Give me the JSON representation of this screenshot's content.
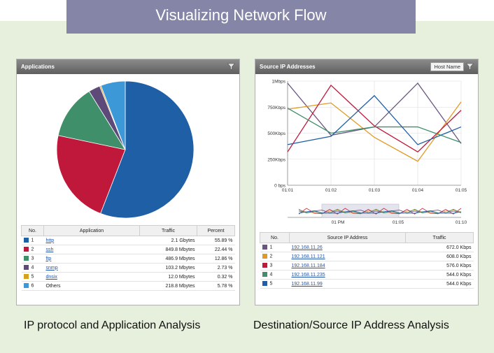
{
  "banner": {
    "title": "Visualizing Network Flow"
  },
  "applications": {
    "header": "Applications",
    "table": {
      "columns": [
        "No.",
        "Application",
        "Traffic",
        "Percent"
      ],
      "rows": [
        {
          "no": "1",
          "app": "http",
          "traffic": "2.1 Gbytes",
          "percent": "55.89 %",
          "color": "#1f5fa6",
          "link": true
        },
        {
          "no": "2",
          "app": "ssh",
          "traffic": "849.8 Mbytes",
          "percent": "22.44 %",
          "color": "#c0183b",
          "link": true
        },
        {
          "no": "3",
          "app": "ftp",
          "traffic": "486.9 Mbytes",
          "percent": "12.86 %",
          "color": "#3f8f6a",
          "link": true
        },
        {
          "no": "4",
          "app": "snmp",
          "traffic": "103.2 Mbytes",
          "percent": "2.73 %",
          "color": "#5e4a78",
          "link": true
        },
        {
          "no": "5",
          "app": "dnsix",
          "traffic": "12.0 Mbytes",
          "percent": "0.32 %",
          "color": "#d4a21e",
          "link": true
        },
        {
          "no": "6",
          "app": "Others",
          "traffic": "218.8 Mbytes",
          "percent": "5.78 %",
          "color": "#3d98d8",
          "link": false
        }
      ]
    },
    "caption": "IP protocol and Application Analysis"
  },
  "source_ip": {
    "header": "Source IP Addresses",
    "host_button": "Host Name",
    "table": {
      "columns": [
        "No.",
        "Source IP Address",
        "Traffic"
      ],
      "rows": [
        {
          "no": "1",
          "ip": "192.168.11.26",
          "traffic": "672.0 Kbps",
          "color": "#6b5680"
        },
        {
          "no": "2",
          "ip": "192.168.11.121",
          "traffic": "608.0 Kbps",
          "color": "#e09a24"
        },
        {
          "no": "3",
          "ip": "192.168.11.184",
          "traffic": "576.0 Kbps",
          "color": "#c0183b"
        },
        {
          "no": "4",
          "ip": "192.168.11.235",
          "traffic": "544.0 Kbps",
          "color": "#3f8f6a"
        },
        {
          "no": "5",
          "ip": "192.168.11.99",
          "traffic": "544.0 Kbps",
          "color": "#1f5fa6"
        }
      ]
    },
    "caption": "Destination/Source IP Address Analysis"
  },
  "chart_data": [
    {
      "type": "pie",
      "categories": [
        "http",
        "ssh",
        "ftp",
        "snmp",
        "dnsix",
        "Others"
      ],
      "values": [
        55.89,
        22.44,
        12.86,
        2.73,
        0.32,
        5.78
      ],
      "colors": [
        "#1f5fa6",
        "#c0183b",
        "#3f8f6a",
        "#5e4a78",
        "#d4a21e",
        "#3d98d8"
      ]
    },
    {
      "type": "line",
      "x": [
        "01:01",
        "01:02",
        "01:03",
        "01:04",
        "01:05"
      ],
      "yticks": [
        "1Mbps",
        "750Kbps",
        "500Kbps",
        "250Kbps",
        "0 bps"
      ],
      "ylim": [
        0,
        1000
      ],
      "grid": true,
      "series": [
        {
          "values": [
            980,
            480,
            560,
            980,
            400
          ],
          "color": "#6b5680"
        },
        {
          "values": [
            730,
            790,
            460,
            230,
            800
          ],
          "color": "#e09a24"
        },
        {
          "values": [
            320,
            960,
            570,
            320,
            720
          ],
          "color": "#c0183b"
        },
        {
          "values": [
            740,
            500,
            560,
            560,
            410
          ],
          "color": "#3f8f6a"
        },
        {
          "values": [
            390,
            470,
            860,
            390,
            560
          ],
          "color": "#1f5fa6"
        }
      ],
      "overview_ticks": [
        "01 PM",
        "01:05",
        "01:10"
      ]
    }
  ]
}
